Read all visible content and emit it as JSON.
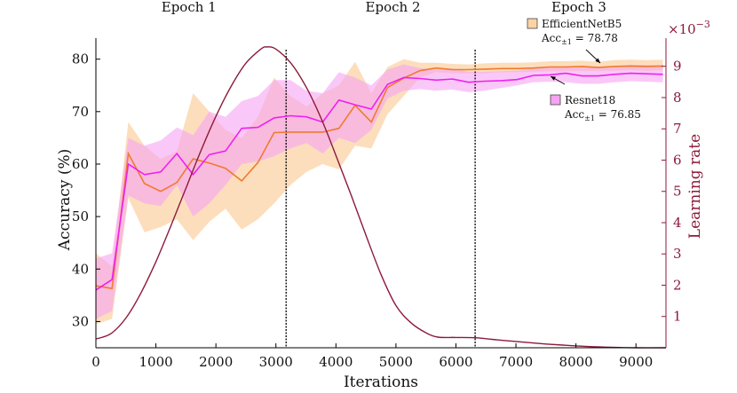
{
  "chart_data": {
    "type": "line",
    "x_axis": {
      "label": "Iterations",
      "range": [
        0,
        9500
      ],
      "ticks": [
        0,
        1000,
        2000,
        3000,
        4000,
        5000,
        6000,
        7000,
        8000,
        9000
      ]
    },
    "y_axis_left": {
      "label": "Accuracy (%)",
      "range": [
        25,
        84
      ],
      "ticks": [
        30,
        40,
        50,
        60,
        70,
        80
      ]
    },
    "y_axis_right": {
      "label": "Learning rate",
      "range": [
        0,
        9.9
      ],
      "ticks": [
        1,
        2,
        3,
        4,
        5,
        6,
        7,
        8,
        9
      ],
      "multiplier": "×10",
      "exponent": "−3",
      "color": "#8c1a3a"
    },
    "epochs": [
      {
        "label": "Epoch 1",
        "x_center": 1550
      },
      {
        "label": "Epoch 2",
        "x_center": 4950
      },
      {
        "label": "Epoch 3",
        "x_center": 8050
      }
    ],
    "epoch_boundaries": [
      3170,
      6320
    ],
    "series": [
      {
        "name": "EfficientNetB5",
        "acc_label": "Acc",
        "acc_sub": "±1",
        "acc_value": "= 78.78",
        "line_color": "#f07a30",
        "band_color": "#fbd3a6",
        "x": [
          0,
          270,
          540,
          810,
          1080,
          1350,
          1620,
          1890,
          2160,
          2430,
          2700,
          2970,
          3240,
          3510,
          3780,
          4050,
          4320,
          4590,
          4860,
          5130,
          5400,
          5670,
          5940,
          6210,
          6480,
          6750,
          7020,
          7290,
          7560,
          7830,
          8100,
          8370,
          8640,
          8910,
          9180,
          9450
        ],
        "mean": [
          36.8,
          36.3,
          62.0,
          56.3,
          54.8,
          56.5,
          61.0,
          60.2,
          59.2,
          56.8,
          60.3,
          66.0,
          66.1,
          66.1,
          66.1,
          66.8,
          71.2,
          68.0,
          74.6,
          76.4,
          77.8,
          78.3,
          78.0,
          78.0,
          78.1,
          78.2,
          78.2,
          78.3,
          78.5,
          78.5,
          78.6,
          78.4,
          78.6,
          78.7,
          78.6,
          78.7
        ],
        "lower": [
          29.5,
          30.5,
          53.5,
          47.0,
          48.0,
          49.5,
          45.5,
          49.0,
          51.5,
          47.5,
          49.5,
          52.5,
          56.0,
          58.5,
          60.0,
          59.0,
          63.5,
          63.0,
          69.5,
          73.0,
          76.5,
          77.5,
          77.3,
          77.3,
          77.3,
          77.5,
          77.5,
          77.6,
          77.7,
          77.7,
          77.8,
          77.7,
          77.8,
          77.9,
          77.8,
          77.9
        ],
        "upper": [
          43.0,
          40.5,
          68.0,
          63.5,
          61.0,
          62.5,
          73.5,
          70.0,
          66.5,
          65.0,
          69.0,
          76.5,
          73.0,
          71.0,
          73.5,
          75.0,
          79.5,
          73.5,
          78.5,
          80.0,
          79.3,
          79.3,
          79.1,
          79.0,
          79.2,
          79.3,
          79.3,
          79.4,
          79.6,
          79.6,
          79.7,
          79.5,
          79.8,
          79.9,
          79.8,
          79.9
        ]
      },
      {
        "name": "Resnet18",
        "acc_label": "Acc",
        "acc_sub": "±1",
        "acc_value": "= 76.85",
        "line_color": "#f020f0",
        "band_color": "#f6a3f3",
        "x": [
          0,
          270,
          540,
          810,
          1080,
          1350,
          1620,
          1890,
          2160,
          2430,
          2700,
          2970,
          3240,
          3510,
          3780,
          4050,
          4320,
          4590,
          4860,
          5130,
          5400,
          5670,
          5940,
          6210,
          6480,
          6750,
          7020,
          7290,
          7560,
          7830,
          8100,
          8370,
          8640,
          8910,
          9180,
          9450
        ],
        "mean": [
          36.0,
          38.0,
          60.0,
          58.0,
          58.5,
          62.0,
          58.0,
          61.8,
          62.5,
          66.8,
          67.0,
          68.8,
          69.2,
          69.0,
          68.0,
          72.2,
          71.3,
          70.5,
          75.2,
          76.5,
          76.3,
          76.0,
          76.2,
          75.6,
          75.8,
          75.9,
          76.1,
          76.9,
          77.0,
          77.3,
          76.8,
          76.8,
          77.1,
          77.3,
          77.2,
          77.1
        ],
        "lower": [
          30.5,
          32.0,
          54.0,
          52.5,
          52.0,
          56.0,
          50.0,
          52.5,
          56.0,
          60.0,
          60.5,
          61.5,
          63.0,
          64.0,
          62.0,
          65.0,
          64.0,
          66.5,
          72.5,
          74.0,
          74.3,
          74.0,
          74.2,
          73.7,
          74.0,
          74.5,
          75.0,
          75.6,
          75.7,
          75.6,
          75.3,
          75.3,
          75.6,
          75.8,
          75.7,
          75.6
        ],
        "upper": [
          42.0,
          43.0,
          65.0,
          63.5,
          64.5,
          67.0,
          65.5,
          70.0,
          69.0,
          72.0,
          73.0,
          76.0,
          76.0,
          74.0,
          73.5,
          77.5,
          76.5,
          75.0,
          78.0,
          79.0,
          78.3,
          78.0,
          78.2,
          77.6,
          77.6,
          77.7,
          77.8,
          78.3,
          78.5,
          78.7,
          78.5,
          78.5,
          78.7,
          78.9,
          78.9,
          78.8
        ]
      }
    ],
    "learning_rate": {
      "name": "Learning rate",
      "color": "#8c1a3a",
      "x": [
        0,
        250,
        500,
        750,
        1000,
        1250,
        1500,
        1750,
        2000,
        2250,
        2500,
        2750,
        2850,
        3000,
        3250,
        3500,
        3750,
        4000,
        4250,
        4500,
        4750,
        5000,
        5250,
        5500,
        5700,
        6000,
        6320,
        6600,
        7000,
        7500,
        8000,
        8500,
        9000,
        9500
      ],
      "y": [
        0.28,
        0.45,
        0.95,
        1.75,
        2.75,
        3.9,
        5.1,
        6.3,
        7.4,
        8.35,
        9.1,
        9.55,
        9.62,
        9.55,
        9.1,
        8.35,
        7.35,
        6.15,
        4.9,
        3.6,
        2.35,
        1.35,
        0.8,
        0.48,
        0.34,
        0.33,
        0.32,
        0.27,
        0.2,
        0.12,
        0.06,
        0.02,
        0.0,
        0.0
      ]
    }
  }
}
